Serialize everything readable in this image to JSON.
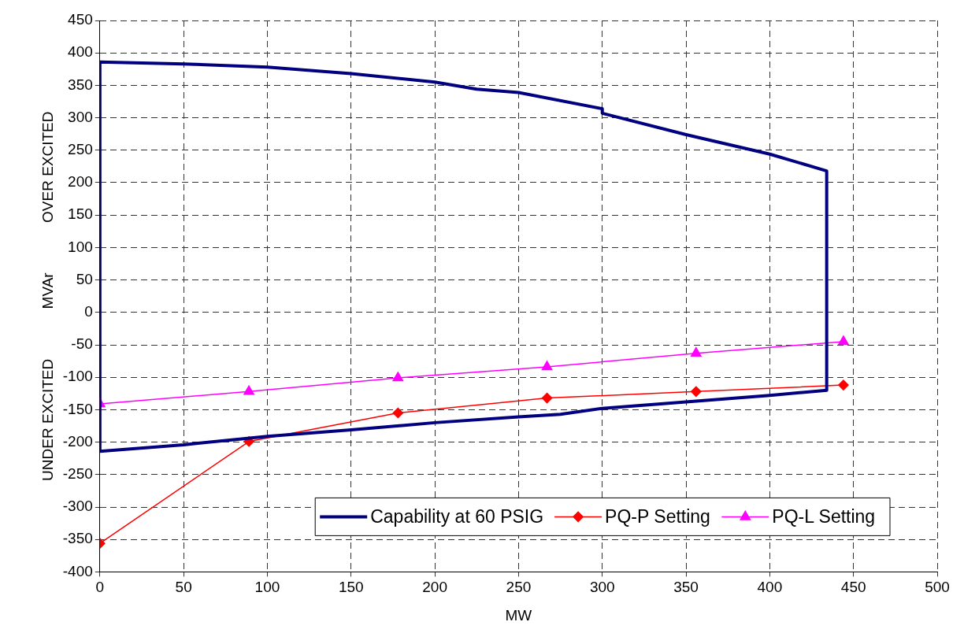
{
  "chart_data": {
    "type": "line",
    "xlabel": "MW",
    "ylabel": "UNDER EXCITED            MVAr            OVER EXCITED",
    "xlim": [
      0,
      500
    ],
    "xticks": [
      0,
      50,
      100,
      150,
      200,
      250,
      300,
      350,
      400,
      450,
      500
    ],
    "ylim": [
      -400,
      450
    ],
    "yticks": [
      -400,
      -350,
      -300,
      -250,
      -200,
      -150,
      -100,
      -50,
      0,
      50,
      100,
      150,
      200,
      250,
      300,
      350,
      400,
      450
    ],
    "grid": true,
    "legend": "bottom right",
    "series": [
      {
        "name": "Capability at 60 PSIG",
        "color": "#000080",
        "marker": "none",
        "x": [
          0,
          0,
          50,
          100,
          150,
          200,
          225,
          250,
          300,
          300,
          350,
          400,
          434,
          434
        ],
        "values": [
          -214,
          386,
          383,
          378,
          368,
          355,
          344,
          339,
          314,
          307,
          274,
          244,
          218,
          -120
        ]
      },
      {
        "color": "#000080",
        "marker": "none",
        "x": [
          0,
          50,
          100,
          150,
          200,
          250,
          275,
          300,
          350,
          400,
          434
        ],
        "values": [
          -214,
          -204,
          -191,
          -181,
          -170,
          -161,
          -157,
          -148,
          -138,
          -128,
          -120
        ]
      },
      {
        "name": "PQ-P Setting",
        "color": "#ff0000",
        "marker": "diamond",
        "x": [
          0,
          89,
          178,
          267,
          356,
          444
        ],
        "values": [
          -356,
          -199,
          -155,
          -132,
          -122,
          -112
        ]
      },
      {
        "name": "PQ-L Setting",
        "color": "#ff00ff",
        "marker": "triangle",
        "x": [
          0,
          89,
          178,
          267,
          356,
          444
        ],
        "values": [
          -141,
          -122,
          -101,
          -84,
          -63,
          -45
        ]
      }
    ]
  }
}
